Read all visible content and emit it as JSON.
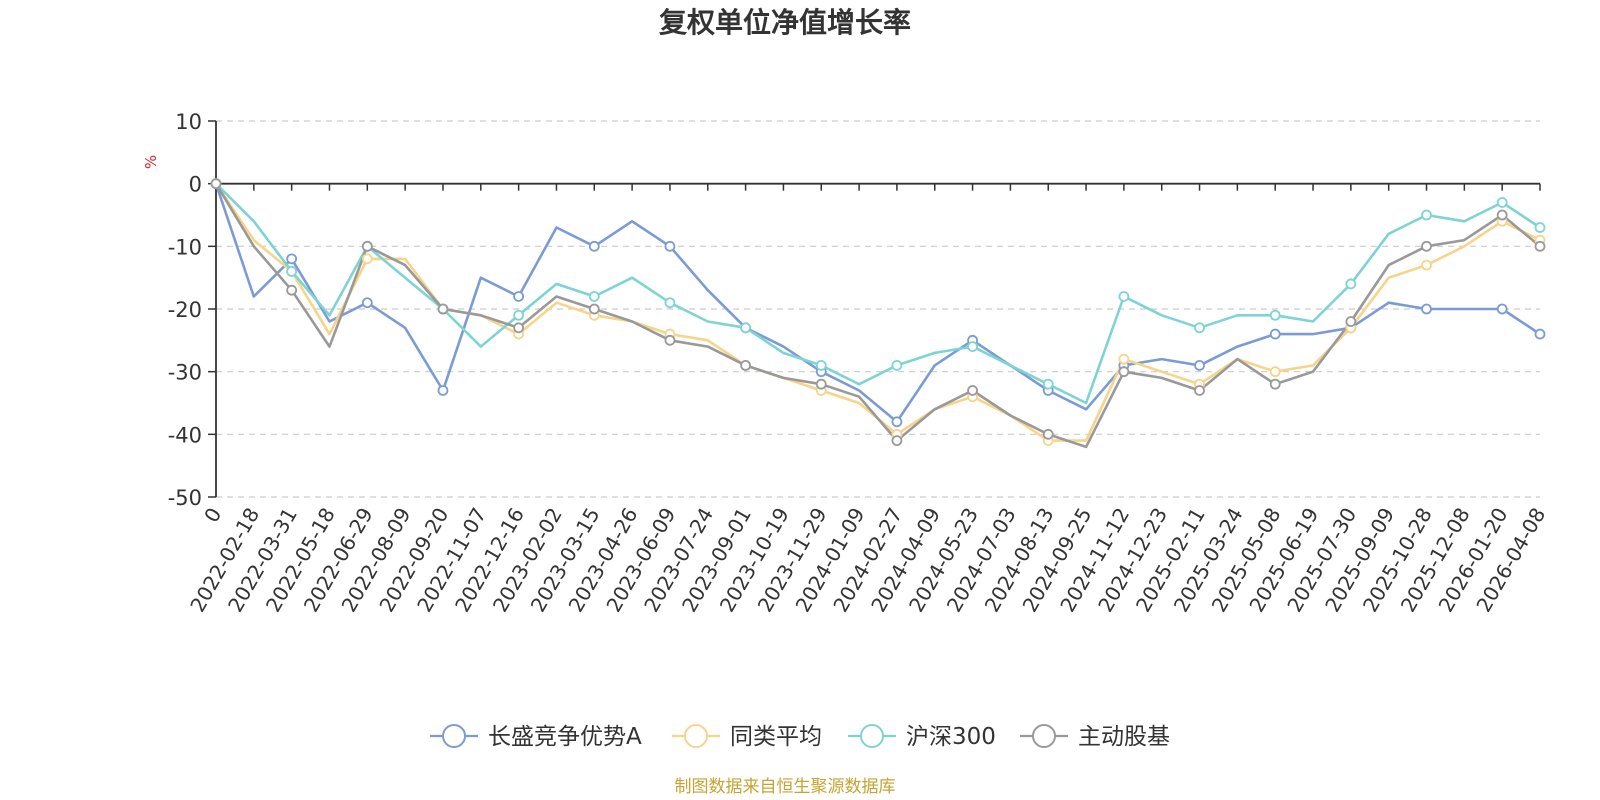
{
  "chart_data": {
    "type": "line",
    "title": "复权单位净值增长率",
    "ylabel": "%",
    "ylim": [
      -50,
      10
    ],
    "yticks": [
      10,
      0,
      -10,
      -20,
      -30,
      -40,
      -50
    ],
    "grid": true,
    "legend_position": "bottom",
    "source": "制图数据来自恒生聚源数据库",
    "x": [
      "0",
      "2022-02-18",
      "2022-03-31",
      "2022-05-18",
      "2022-06-29",
      "2022-08-09",
      "2022-09-20",
      "2022-11-07",
      "2022-12-16",
      "2023-02-02",
      "2023-03-15",
      "2023-04-26",
      "2023-06-09",
      "2023-07-24",
      "2023-09-01",
      "2023-10-19",
      "2023-11-29",
      "2024-01-09",
      "2024-02-27",
      "2024-04-09",
      "2024-05-23",
      "2024-07-03",
      "2024-08-13",
      "2024-09-25",
      "2024-11-12",
      "2024-12-23",
      "2025-02-11",
      "2025-03-24",
      "2025-05-08",
      "2025-06-19",
      "2025-07-30",
      "2025-09-09",
      "2025-10-28",
      "2025-12-08",
      "2026-01-20",
      "2026-04-08"
    ],
    "series": [
      {
        "name": "长盛竞争优势A",
        "color": "#7b9bd6",
        "values": [
          0,
          -18,
          -12,
          -22,
          -19,
          -23,
          -33,
          -15,
          -18,
          -7,
          -10,
          -6,
          -10,
          -17,
          -23,
          -26,
          -30,
          -33,
          -38,
          -29,
          -25,
          -29,
          -33,
          -36,
          -29,
          -28,
          -29,
          -26,
          -24,
          -24,
          -23,
          -19,
          -20,
          -20,
          -20,
          -24
        ]
      },
      {
        "name": "同类平均",
        "color": "#f7d48a",
        "values": [
          0,
          -9,
          -14,
          -24,
          -12,
          -12,
          -20,
          -21,
          -24,
          -19,
          -21,
          -22,
          -24,
          -25,
          -29,
          -31,
          -33,
          -35,
          -40,
          -36,
          -34,
          -37,
          -41,
          -41,
          -28,
          -30,
          -32,
          -28,
          -30,
          -29,
          -23,
          -15,
          -13,
          -10,
          -6,
          -9
        ]
      },
      {
        "name": "沪深300",
        "color": "#7ed4d4",
        "values": [
          0,
          -6,
          -14,
          -21,
          -10,
          -15,
          -20,
          -26,
          -21,
          -16,
          -18,
          -15,
          -19,
          -22,
          -23,
          -27,
          -29,
          -32,
          -29,
          -27,
          -26,
          -29,
          -32,
          -35,
          -18,
          -21,
          -23,
          -21,
          -21,
          -22,
          -16,
          -8,
          -5,
          -6,
          -3,
          -7
        ]
      },
      {
        "name": "主动股基",
        "color": "#999999",
        "values": [
          0,
          -10,
          -17,
          -26,
          -10,
          -13,
          -20,
          -21,
          -23,
          -18,
          -20,
          -22,
          -25,
          -26,
          -29,
          -31,
          -32,
          -34,
          -41,
          -36,
          -33,
          -37,
          -40,
          -42,
          -30,
          -31,
          -33,
          -28,
          -32,
          -30,
          -22,
          -13,
          -10,
          -9,
          -5,
          -10
        ]
      }
    ]
  }
}
